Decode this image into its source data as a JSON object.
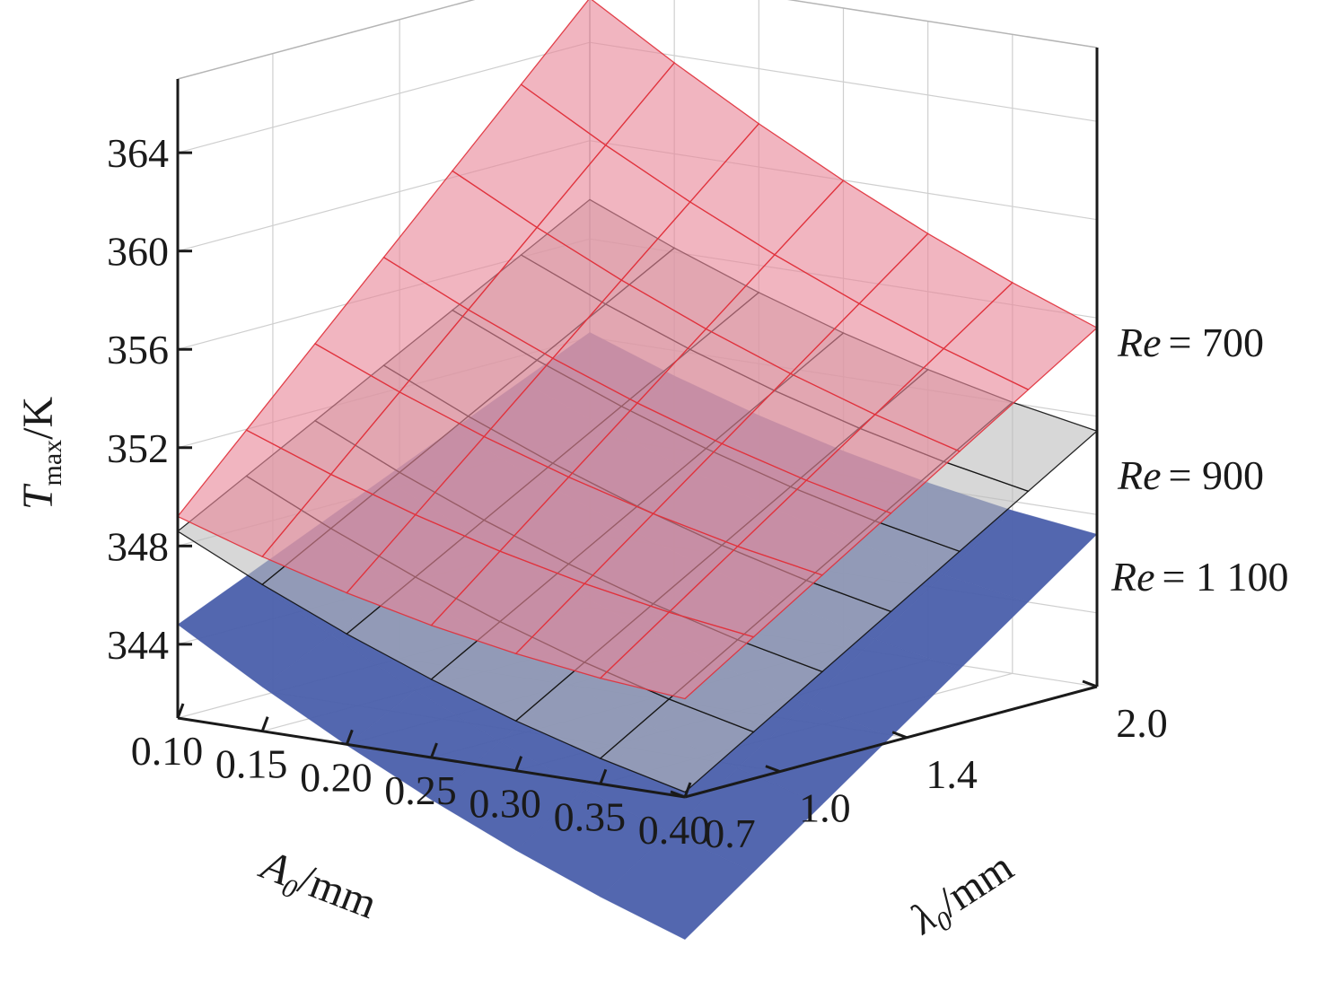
{
  "chart_data": {
    "type": "surface3d",
    "z_axis": {
      "label_main": "T",
      "label_sub": "max",
      "label_unit": "/K",
      "ticks": [
        "364",
        "360",
        "356",
        "352",
        "348",
        "344"
      ],
      "range": [
        341,
        367
      ]
    },
    "x_axis": {
      "label_main": "A",
      "label_sub": "0",
      "label_unit": "/mm",
      "ticks": [
        "0.10",
        "0.15",
        "0.20",
        "0.25",
        "0.30",
        "0.35",
        "0.40"
      ],
      "range": [
        0.1,
        0.4
      ]
    },
    "y_axis": {
      "label_main": "λ",
      "label_sub": "0",
      "label_unit": "/mm",
      "ticks": [
        "0.7",
        "1.0",
        "1.4",
        "2.0"
      ],
      "range": [
        0.7,
        2.0
      ]
    },
    "grid": true,
    "series": [
      {
        "name_prefix": "Re",
        "name_value": "= 700",
        "color": "#e8889a",
        "stroke": "#e0303a",
        "corners": {
          "a_min_l_min": 349.2,
          "a_min_l_max": 365.8,
          "a_max_l_min": 345.0,
          "a_max_l_max": 355.6
        }
      },
      {
        "name_prefix": "Re",
        "name_value": "= 900",
        "color": "#bdbdbd",
        "stroke": "#111111",
        "corners": {
          "a_min_l_min": 348.6,
          "a_min_l_max": 357.6,
          "a_max_l_min": 341.2,
          "a_max_l_max": 351.4
        }
      },
      {
        "name_prefix": "Re",
        "name_value": "= 1 100",
        "color": "#4a5fab",
        "stroke": "none",
        "corners": {
          "a_min_l_min": 344.8,
          "a_min_l_max": 352.2,
          "a_max_l_min": 335.2,
          "a_max_l_max": 347.2
        }
      }
    ]
  }
}
